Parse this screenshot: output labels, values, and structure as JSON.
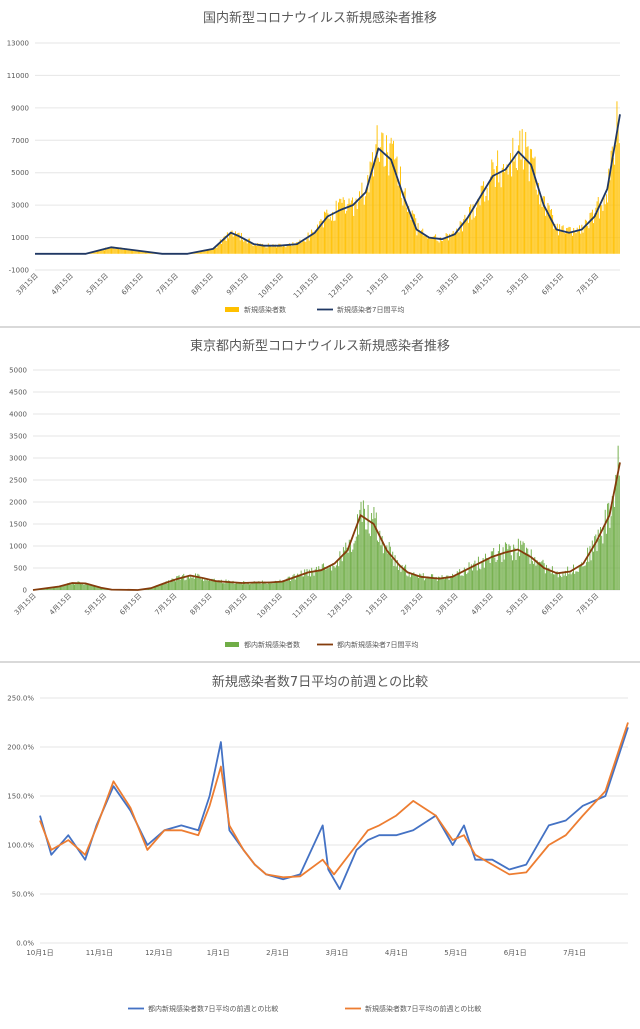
{
  "charts": [
    {
      "chart_data": {
        "type": "bar+line",
        "title": "国内新型コロナウイルス新規感染者推移",
        "ylim": [
          -1000,
          13000
        ],
        "yticks": [
          "-1000",
          "1000",
          "3000",
          "5000",
          "7000",
          "9000",
          "11000",
          "13000"
        ],
        "ytick_values": [
          -1000,
          1000,
          3000,
          5000,
          7000,
          9000,
          11000,
          13000
        ],
        "xticks": [
          "3月15日",
          "4月15日",
          "5月15日",
          "6月15日",
          "7月15日",
          "8月15日",
          "9月15日",
          "10月15日",
          "11月15日",
          "12月15日",
          "1月15日",
          "2月15日",
          "3月15日",
          "4月15日",
          "5月15日",
          "6月15日",
          "7月15日"
        ],
        "grid": true,
        "legend_position": "bottom",
        "series": [
          {
            "name": "新規感染者数",
            "kind": "bar",
            "color": "#ffc000"
          },
          {
            "name": "新規感染者7日間平均",
            "kind": "line",
            "color": "#203864"
          }
        ],
        "line_keypoints": [
          [
            0,
            0
          ],
          [
            2,
            0
          ],
          [
            3,
            400
          ],
          [
            4,
            200
          ],
          [
            5,
            0
          ],
          [
            6,
            0
          ],
          [
            7,
            300
          ],
          [
            7.7,
            1300
          ],
          [
            8,
            1100
          ],
          [
            8.6,
            600
          ],
          [
            9,
            500
          ],
          [
            9.6,
            500
          ],
          [
            10.3,
            600
          ],
          [
            11,
            1300
          ],
          [
            11.5,
            2300
          ],
          [
            12,
            2700
          ],
          [
            12.5,
            3000
          ],
          [
            13,
            3800
          ],
          [
            13.5,
            6500
          ],
          [
            14,
            5800
          ],
          [
            14.5,
            3500
          ],
          [
            15,
            1500
          ],
          [
            15.5,
            1000
          ],
          [
            16,
            900
          ],
          [
            16.5,
            1200
          ],
          [
            17,
            2200
          ],
          [
            17.5,
            3500
          ],
          [
            18,
            4800
          ],
          [
            18.5,
            5200
          ],
          [
            19,
            6300
          ],
          [
            19.5,
            5500
          ],
          [
            20,
            3000
          ],
          [
            20.5,
            1500
          ],
          [
            21,
            1300
          ],
          [
            21.5,
            1500
          ],
          [
            22,
            2300
          ],
          [
            22.5,
            4000
          ],
          [
            23,
            8600
          ]
        ]
      }
    },
    {
      "chart_data": {
        "type": "bar+line",
        "title": "東京都内新型コロナウイルス新規感染者推移",
        "ylim": [
          0,
          5000
        ],
        "yticks": [
          "0",
          "500",
          "1000",
          "1500",
          "2000",
          "2500",
          "3000",
          "3500",
          "4000",
          "4500",
          "5000"
        ],
        "ytick_values": [
          0,
          500,
          1000,
          1500,
          2000,
          2500,
          3000,
          3500,
          4000,
          4500,
          5000
        ],
        "xticks": [
          "3月15日",
          "4月15日",
          "5月15日",
          "6月15日",
          "7月15日",
          "8月15日",
          "9月15日",
          "10月15日",
          "11月15日",
          "12月15日",
          "1月15日",
          "2月15日",
          "3月15日",
          "4月15日",
          "5月15日",
          "6月15日",
          "7月15日"
        ],
        "grid": true,
        "legend_position": "bottom",
        "series": [
          {
            "name": "都内新規感染者数",
            "kind": "bar",
            "color": "#70ad47"
          },
          {
            "name": "都内新規感染者7日間平均",
            "kind": "line",
            "color": "#843c0c"
          }
        ],
        "line_keypoints": [
          [
            0,
            0
          ],
          [
            1,
            80
          ],
          [
            1.5,
            160
          ],
          [
            2,
            150
          ],
          [
            2.6,
            50
          ],
          [
            3,
            10
          ],
          [
            4,
            0
          ],
          [
            4.5,
            40
          ],
          [
            5,
            150
          ],
          [
            5.5,
            250
          ],
          [
            6,
            330
          ],
          [
            6.5,
            270
          ],
          [
            7,
            200
          ],
          [
            7.5,
            180
          ],
          [
            8,
            160
          ],
          [
            8.5,
            170
          ],
          [
            9,
            170
          ],
          [
            9.5,
            190
          ],
          [
            10.5,
            400
          ],
          [
            11,
            450
          ],
          [
            11.5,
            600
          ],
          [
            12,
            900
          ],
          [
            12.5,
            1700
          ],
          [
            13,
            1500
          ],
          [
            13.5,
            900
          ],
          [
            14,
            550
          ],
          [
            14.3,
            400
          ],
          [
            14.8,
            300
          ],
          [
            15.5,
            260
          ],
          [
            16,
            300
          ],
          [
            16.5,
            450
          ],
          [
            17,
            600
          ],
          [
            17.5,
            750
          ],
          [
            18,
            850
          ],
          [
            18.5,
            920
          ],
          [
            19,
            750
          ],
          [
            19.5,
            500
          ],
          [
            20,
            380
          ],
          [
            20.5,
            420
          ],
          [
            21,
            600
          ],
          [
            21.5,
            1100
          ],
          [
            22,
            1700
          ],
          [
            22.4,
            2900
          ]
        ]
      }
    },
    {
      "chart_data": {
        "type": "line",
        "title": "新規感染者数7日平均の前週との比較",
        "ylim": [
          0,
          250
        ],
        "yticks": [
          "0.0%",
          "50.0%",
          "100.0%",
          "150.0%",
          "200.0%",
          "250.0%"
        ],
        "ytick_values": [
          0,
          50,
          100,
          150,
          200,
          250
        ],
        "xticks": [
          "10月1日",
          "11月1日",
          "12月1日",
          "1月1日",
          "2月1日",
          "3月1日",
          "4月1日",
          "5月1日",
          "6月1日",
          "7月1日"
        ],
        "grid": true,
        "legend_position": "bottom",
        "series": [
          {
            "name": "都内新規感染者数7日平均の前週との比較",
            "color": "#4472c4",
            "keypoints": [
              [
                0,
                130
              ],
              [
                0.2,
                90
              ],
              [
                0.5,
                110
              ],
              [
                0.8,
                85
              ],
              [
                1,
                120
              ],
              [
                1.3,
                160
              ],
              [
                1.6,
                135
              ],
              [
                1.9,
                100
              ],
              [
                2.2,
                115
              ],
              [
                2.5,
                120
              ],
              [
                2.8,
                115
              ],
              [
                3,
                150
              ],
              [
                3.2,
                205
              ],
              [
                3.35,
                115
              ],
              [
                3.6,
                95
              ],
              [
                3.8,
                80
              ],
              [
                4,
                70
              ],
              [
                4.3,
                65
              ],
              [
                4.6,
                70
              ],
              [
                5,
                120
              ],
              [
                5.1,
                75
              ],
              [
                5.3,
                55
              ],
              [
                5.6,
                95
              ],
              [
                5.8,
                105
              ],
              [
                6,
                110
              ],
              [
                6.3,
                110
              ],
              [
                6.6,
                115
              ],
              [
                7,
                130
              ],
              [
                7.3,
                100
              ],
              [
                7.5,
                120
              ],
              [
                7.7,
                85
              ],
              [
                8,
                85
              ],
              [
                8.3,
                75
              ],
              [
                8.6,
                80
              ],
              [
                9,
                120
              ],
              [
                9.3,
                125
              ],
              [
                9.6,
                140
              ],
              [
                10,
                150
              ],
              [
                10.4,
                220
              ]
            ]
          },
          {
            "name": "新規感染者数7日平均の前週との比較",
            "color": "#ed7d31",
            "keypoints": [
              [
                0,
                125
              ],
              [
                0.2,
                95
              ],
              [
                0.5,
                105
              ],
              [
                0.8,
                90
              ],
              [
                1,
                118
              ],
              [
                1.3,
                165
              ],
              [
                1.6,
                138
              ],
              [
                1.9,
                95
              ],
              [
                2.2,
                115
              ],
              [
                2.5,
                115
              ],
              [
                2.8,
                110
              ],
              [
                3,
                140
              ],
              [
                3.2,
                180
              ],
              [
                3.35,
                120
              ],
              [
                3.6,
                95
              ],
              [
                3.8,
                80
              ],
              [
                4,
                70
              ],
              [
                4.3,
                67
              ],
              [
                4.6,
                68
              ],
              [
                5,
                85
              ],
              [
                5.2,
                70
              ],
              [
                5.6,
                100
              ],
              [
                5.8,
                115
              ],
              [
                6,
                120
              ],
              [
                6.3,
                130
              ],
              [
                6.6,
                145
              ],
              [
                7,
                130
              ],
              [
                7.3,
                105
              ],
              [
                7.5,
                110
              ],
              [
                7.7,
                90
              ],
              [
                8,
                80
              ],
              [
                8.3,
                70
              ],
              [
                8.6,
                72
              ],
              [
                9,
                100
              ],
              [
                9.3,
                110
              ],
              [
                9.6,
                130
              ],
              [
                10,
                155
              ],
              [
                10.4,
                225
              ]
            ]
          }
        ]
      }
    }
  ]
}
